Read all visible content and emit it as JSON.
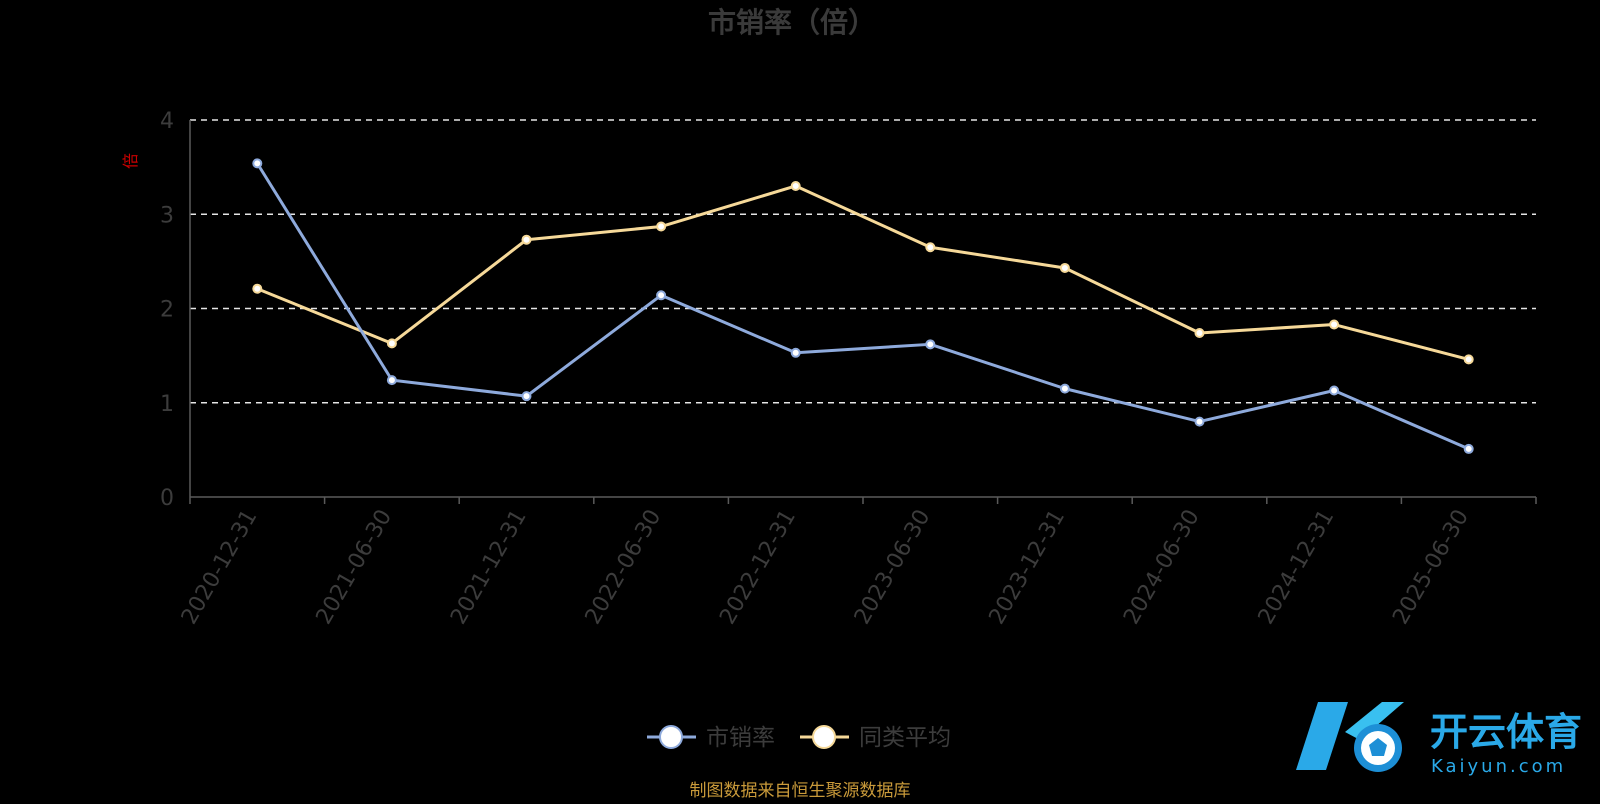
{
  "chart_data": {
    "type": "line",
    "title": "市销率（倍）",
    "ylabel": "倍",
    "xlabel": "",
    "ylim": [
      0,
      4
    ],
    "yticks": [
      0,
      1,
      2,
      3,
      4
    ],
    "grid": "dashed-horizontal",
    "legend_position": "bottom-center",
    "categories": [
      "2020-12-31",
      "2021-06-30",
      "2021-12-31",
      "2022-06-30",
      "2022-12-31",
      "2023-06-30",
      "2023-12-31",
      "2024-06-30",
      "2024-12-31",
      "2025-06-30"
    ],
    "series": [
      {
        "name": "市销率",
        "color": "#8eaadc",
        "values": [
          3.54,
          1.24,
          1.07,
          2.14,
          1.53,
          1.62,
          1.15,
          0.8,
          1.13,
          0.51
        ]
      },
      {
        "name": "同类平均",
        "color": "#f6d999",
        "values": [
          2.21,
          1.63,
          2.73,
          2.87,
          3.3,
          2.65,
          2.43,
          1.74,
          1.83,
          1.46
        ]
      }
    ]
  },
  "source_note": "制图数据来自恒生聚源数据库",
  "watermark": {
    "name_cn": "开云体育",
    "name_en": "Kaiyun.com",
    "color": "#2aa9e8"
  }
}
